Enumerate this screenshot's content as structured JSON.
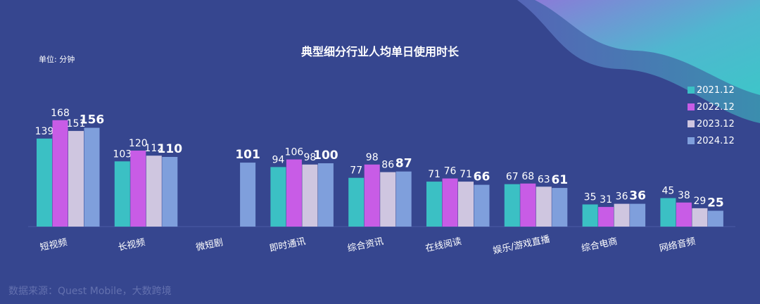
{
  "chart_data": {
    "type": "bar",
    "title": "典型细分行业人均单日使用时长",
    "unit_label": "单位: 分钟",
    "categories": [
      "短视频",
      "长视频",
      "微短剧",
      "即时通讯",
      "综合资讯",
      "在线阅读",
      "娱乐/游戏直播",
      "综合电商",
      "网络音频"
    ],
    "series": [
      {
        "name": "2021.12",
        "color": "#3bc0c4",
        "values": [
          139,
          103,
          null,
          94,
          77,
          71,
          67,
          35,
          45
        ]
      },
      {
        "name": "2022.12",
        "color": "#c85ce6",
        "values": [
          168,
          120,
          null,
          106,
          98,
          76,
          68,
          31,
          38
        ]
      },
      {
        "name": "2023.12",
        "color": "#cfc6e0",
        "values": [
          151,
          112,
          null,
          98,
          86,
          71,
          63,
          36,
          29
        ]
      },
      {
        "name": "2024.12",
        "color": "#7f9fdc",
        "values": [
          156,
          110,
          101,
          100,
          87,
          66,
          61,
          36,
          25
        ]
      }
    ],
    "ylim": [
      0,
      175
    ],
    "grid": false,
    "legend_position": "right"
  },
  "watermark": "数据来源：Quest Mobile，大数跨境"
}
